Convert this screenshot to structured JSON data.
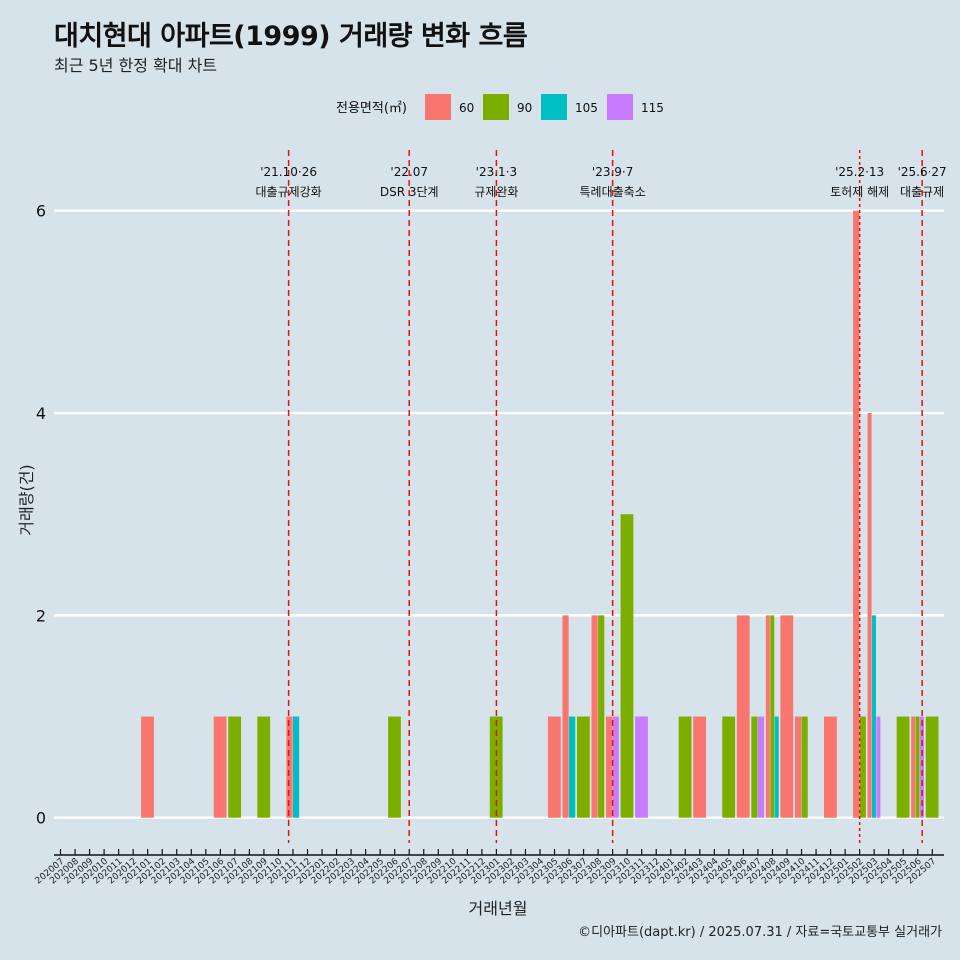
{
  "header": {
    "title": "대치현대 아파트(1999) 거래량 변화 흐름",
    "subtitle": "최근 5년 한정 확대 차트"
  },
  "caption": "©디아파트(dapt.kr) / 2025.07.31 / 자료=국토교통부 실거래가",
  "colors": {
    "background": "#d6e3ea",
    "60": "#f8766d",
    "90": "#7cae00",
    "105": "#00bfc4",
    "115": "#c77cff",
    "event_line": "#e8100c"
  },
  "chart_data": {
    "type": "bar",
    "xlabel": "거래년월",
    "ylabel": "거래량(건)",
    "ylim": [
      -0.25,
      6.6
    ],
    "yticks": [
      0,
      2,
      4,
      6
    ],
    "grid": "horizontal major lines",
    "legend": {
      "title": "전용면적(㎡)",
      "placement": "top"
    },
    "categories": [
      "202007",
      "202008",
      "202009",
      "202010",
      "202011",
      "202012",
      "202101",
      "202102",
      "202103",
      "202104",
      "202105",
      "202106",
      "202107",
      "202108",
      "202109",
      "202110",
      "202111",
      "202112",
      "202201",
      "202202",
      "202203",
      "202204",
      "202205",
      "202206",
      "202207",
      "202208",
      "202209",
      "202210",
      "202211",
      "202212",
      "202301",
      "202302",
      "202303",
      "202304",
      "202305",
      "202306",
      "202307",
      "202308",
      "202309",
      "202310",
      "202311",
      "202312",
      "202401",
      "202402",
      "202403",
      "202404",
      "202405",
      "202406",
      "202407",
      "202408",
      "202409",
      "202410",
      "202411",
      "202412",
      "202501",
      "202502",
      "202503",
      "202504",
      "202505",
      "202506",
      "202507"
    ],
    "series": [
      {
        "name": "60",
        "points": [
          [
            "202101",
            1
          ],
          [
            "202106",
            1
          ],
          [
            "202111",
            1
          ],
          [
            "202305",
            1
          ],
          [
            "202306",
            2
          ],
          [
            "202308",
            2
          ],
          [
            "202309",
            1
          ],
          [
            "202403",
            1
          ],
          [
            "202406",
            2
          ],
          [
            "202408",
            2
          ],
          [
            "202409",
            2
          ],
          [
            "202410",
            1
          ],
          [
            "202412",
            1
          ],
          [
            "202502",
            6
          ],
          [
            "202503",
            4
          ],
          [
            "202506",
            1
          ]
        ]
      },
      {
        "name": "90",
        "points": [
          [
            "202107",
            1
          ],
          [
            "202109",
            1
          ],
          [
            "202206",
            1
          ],
          [
            "202301",
            1
          ],
          [
            "202307",
            1
          ],
          [
            "202308",
            2
          ],
          [
            "202310",
            3
          ],
          [
            "202402",
            1
          ],
          [
            "202405",
            1
          ],
          [
            "202407",
            1
          ],
          [
            "202408",
            2
          ],
          [
            "202410",
            1
          ],
          [
            "202502",
            1
          ],
          [
            "202505",
            1
          ],
          [
            "202506",
            1
          ],
          [
            "202507",
            1
          ]
        ]
      },
      {
        "name": "105",
        "points": [
          [
            "202111",
            1
          ],
          [
            "202306",
            1
          ],
          [
            "202408",
            1
          ],
          [
            "202503",
            2
          ]
        ]
      },
      {
        "name": "115",
        "points": [
          [
            "202309",
            1
          ],
          [
            "202311",
            1
          ],
          [
            "202407",
            1
          ],
          [
            "202503",
            1
          ],
          [
            "202506",
            1
          ]
        ]
      }
    ],
    "events": [
      {
        "at": "202110",
        "pos": 0.7,
        "date": "'21.10·26",
        "label": "대출규제강화",
        "style": "dashed"
      },
      {
        "at": "202207",
        "pos": 0.0,
        "date": "'22.07",
        "label": "DSR 3단계",
        "style": "dashed"
      },
      {
        "at": "202301",
        "pos": 0.0,
        "date": "'23.1·3",
        "label": "규제완화",
        "style": "dashed"
      },
      {
        "at": "202309",
        "pos": 0.0,
        "date": "'23.9·7",
        "label": "특례대출축소",
        "style": "dashed"
      },
      {
        "at": "202502",
        "pos": 0.0,
        "date": "'25.2·13",
        "label": "토허제 해제",
        "style": "dotted"
      },
      {
        "at": "202506",
        "pos": 0.3,
        "date": "'25.6·27",
        "label": "대출규제",
        "style": "dashed"
      }
    ]
  }
}
